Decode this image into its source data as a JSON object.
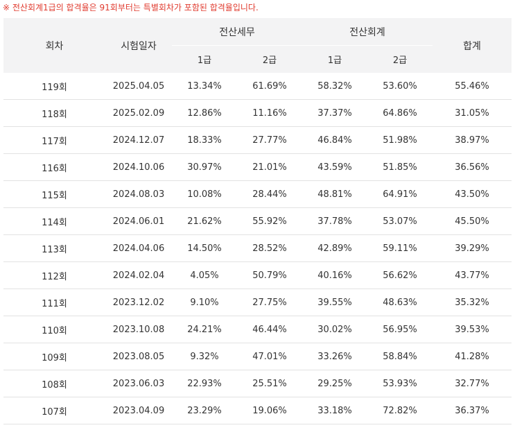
{
  "notice": "※ 전산회계1급의 합격율은 91회부터는 특별회차가 포함된 합격율입니다.",
  "table": {
    "headers": {
      "round": "회차",
      "exam_date": "시험일자",
      "tax": "전산세무",
      "accounting": "전산회계",
      "grade1": "1급",
      "grade2": "2급",
      "total": "합계"
    },
    "rows": [
      {
        "round": "119회",
        "date": "2025.04.05",
        "tax1": "13.34%",
        "tax2": "61.69%",
        "acc1": "58.32%",
        "acc2": "53.60%",
        "total": "55.46%"
      },
      {
        "round": "118회",
        "date": "2025.02.09",
        "tax1": "12.86%",
        "tax2": "11.16%",
        "acc1": "37.37%",
        "acc2": "64.86%",
        "total": "31.05%"
      },
      {
        "round": "117회",
        "date": "2024.12.07",
        "tax1": "18.33%",
        "tax2": "27.77%",
        "acc1": "46.84%",
        "acc2": "51.98%",
        "total": "38.97%"
      },
      {
        "round": "116회",
        "date": "2024.10.06",
        "tax1": "30.97%",
        "tax2": "21.01%",
        "acc1": "43.59%",
        "acc2": "51.85%",
        "total": "36.56%"
      },
      {
        "round": "115회",
        "date": "2024.08.03",
        "tax1": "10.08%",
        "tax2": "28.44%",
        "acc1": "48.81%",
        "acc2": "64.91%",
        "total": "43.50%"
      },
      {
        "round": "114회",
        "date": "2024.06.01",
        "tax1": "21.62%",
        "tax2": "55.92%",
        "acc1": "37.78%",
        "acc2": "53.07%",
        "total": "45.50%"
      },
      {
        "round": "113회",
        "date": "2024.04.06",
        "tax1": "14.50%",
        "tax2": "28.52%",
        "acc1": "42.89%",
        "acc2": "59.11%",
        "total": "39.29%"
      },
      {
        "round": "112회",
        "date": "2024.02.04",
        "tax1": "4.05%",
        "tax2": "50.79%",
        "acc1": "40.16%",
        "acc2": "56.62%",
        "total": "43.77%"
      },
      {
        "round": "111회",
        "date": "2023.12.02",
        "tax1": "9.10%",
        "tax2": "27.75%",
        "acc1": "39.55%",
        "acc2": "48.63%",
        "total": "35.32%"
      },
      {
        "round": "110회",
        "date": "2023.10.08",
        "tax1": "24.21%",
        "tax2": "46.44%",
        "acc1": "30.02%",
        "acc2": "56.95%",
        "total": "39.53%"
      },
      {
        "round": "109회",
        "date": "2023.08.05",
        "tax1": "9.32%",
        "tax2": "47.01%",
        "acc1": "33.26%",
        "acc2": "58.84%",
        "total": "41.28%"
      },
      {
        "round": "108회",
        "date": "2023.06.03",
        "tax1": "22.93%",
        "tax2": "25.51%",
        "acc1": "29.25%",
        "acc2": "53.93%",
        "total": "32.77%"
      },
      {
        "round": "107회",
        "date": "2023.04.09",
        "tax1": "23.29%",
        "tax2": "19.06%",
        "acc1": "33.18%",
        "acc2": "72.82%",
        "total": "36.37%"
      }
    ]
  }
}
